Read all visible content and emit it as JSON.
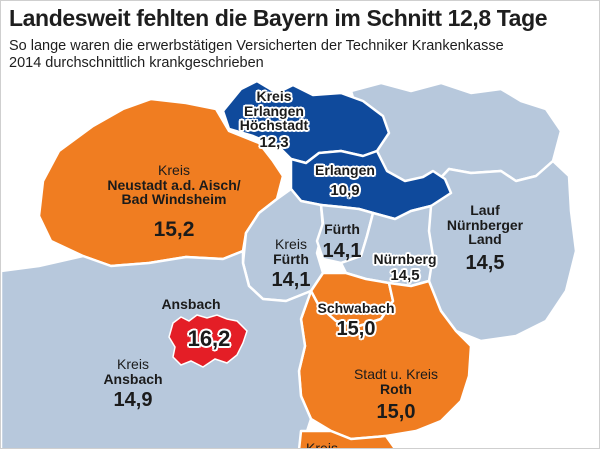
{
  "title": "Landesweit fehlten die Bayern im Schnitt 12,8 Tage",
  "subtitle_lines": [
    "So lange waren die erwerbstätigen Versicherten der Techniker Krankenkasse",
    "2014 durchschnittlich krankgeschrieben"
  ],
  "colors": {
    "above_average": "#f07d21",
    "below_average": "#0f4a9c",
    "neighbor": "#b7c8dc",
    "highest": "#e41e26",
    "border": "#ffffff"
  },
  "regions": {
    "erlangen_hoechstadt": {
      "name": [
        "Kreis",
        "Erlangen",
        "Höchstadt"
      ],
      "value": "12,3"
    },
    "erlangen": {
      "name": [
        "Erlangen"
      ],
      "value": "10,9"
    },
    "neustadt": {
      "prefix": "Kreis",
      "name": [
        "Neustadt a.d. Aisch/",
        "Bad Windsheim"
      ],
      "value": "15,2"
    },
    "fuerth_kreis": {
      "prefix": "Kreis",
      "name": [
        "Fürth"
      ],
      "value": "14,1"
    },
    "fuerth": {
      "name": [
        "Fürth"
      ],
      "value": "14,1"
    },
    "nuernberg": {
      "name": [
        "Nürnberg"
      ],
      "value": "14,5"
    },
    "lauf": {
      "name": [
        "Lauf",
        "Nürnberger",
        "Land"
      ],
      "value": "14,5"
    },
    "ansbach": {
      "name": [
        "Ansbach"
      ],
      "value": "16,2"
    },
    "ansbach_kreis": {
      "prefix": "Kreis",
      "name": [
        "Ansbach"
      ],
      "value": "14,9"
    },
    "schwabach": {
      "name": [
        "Schwabach"
      ],
      "value": "15,0"
    },
    "roth": {
      "prefix": "Stadt u. Kreis",
      "name": [
        "Roth"
      ],
      "value": "15,0"
    },
    "cut_off": {
      "prefix": "Kreis"
    }
  }
}
